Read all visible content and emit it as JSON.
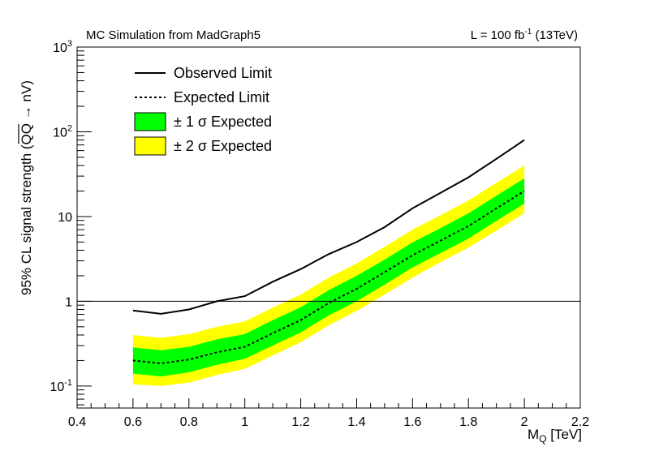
{
  "chart_data": {
    "type": "line",
    "title": "MC Simulation from MadGraph5",
    "lumi_label": {
      "prefix": "L = 100 fb",
      "exponent": "-1",
      "suffix": " (13TeV)"
    },
    "xlabel": {
      "main": "M",
      "sub": "Q",
      "rest": " [TeV]"
    },
    "ylabel": "95%  CL  signal strength (QQ̅ → nV)",
    "ylabel_parts": {
      "pre": "95%  CL  signal strength (",
      "qq": "QQ",
      "arrow": " → nV)"
    },
    "x_scale": "linear",
    "y_scale": "log",
    "xlim": [
      0.4,
      2.2
    ],
    "ylim": [
      0.055,
      1000
    ],
    "x_ticks": [
      0.4,
      0.6,
      0.8,
      1.0,
      1.2,
      1.4,
      1.6,
      1.8,
      2.0,
      2.2
    ],
    "x_tick_labels": [
      "0.4",
      "0.6",
      "0.8",
      "1",
      "1.2",
      "1.4",
      "1.6",
      "1.8",
      "2",
      "2.2"
    ],
    "y_ticks": [
      {
        "value": 0.1,
        "base": "10",
        "exp": "-1"
      },
      {
        "value": 1,
        "base": "1",
        "exp": ""
      },
      {
        "value": 10,
        "base": "10",
        "exp": ""
      },
      {
        "value": 100,
        "base": "10",
        "exp": "2"
      },
      {
        "value": 1000,
        "base": "10",
        "exp": "3"
      }
    ],
    "grid": false,
    "legend_position": "top-left",
    "reference_line": {
      "y": 1
    },
    "x": [
      0.6,
      0.7,
      0.8,
      0.9,
      1.0,
      1.1,
      1.2,
      1.3,
      1.4,
      1.5,
      1.6,
      1.7,
      1.8,
      1.9,
      2.0
    ],
    "series": [
      {
        "name": "Observed Limit",
        "style": "solid",
        "color": "#000000",
        "values": [
          0.78,
          0.71,
          0.8,
          1.0,
          1.15,
          1.7,
          2.4,
          3.6,
          5.0,
          7.5,
          12.5,
          19.0,
          29.0,
          48.0,
          80.0
        ]
      },
      {
        "name": "Expected Limit",
        "style": "dotted",
        "color": "#000000",
        "values": [
          0.2,
          0.185,
          0.205,
          0.25,
          0.29,
          0.42,
          0.6,
          0.95,
          1.4,
          2.2,
          3.5,
          5.2,
          7.7,
          12.5,
          20.0
        ]
      }
    ],
    "bands": [
      {
        "name": "± 2 σ Expected",
        "color": "#ffff00",
        "low": [
          0.105,
          0.1,
          0.11,
          0.135,
          0.16,
          0.23,
          0.33,
          0.52,
          0.77,
          1.2,
          1.9,
          2.9,
          4.3,
          6.8,
          11.0
        ],
        "high": [
          0.4,
          0.37,
          0.41,
          0.5,
          0.58,
          0.84,
          1.2,
          1.9,
          2.8,
          4.4,
          7.0,
          10.4,
          15.5,
          25.0,
          40.0
        ]
      },
      {
        "name": "± 1 σ Expected",
        "color": "#00ff00",
        "low": [
          0.14,
          0.13,
          0.145,
          0.178,
          0.21,
          0.3,
          0.43,
          0.68,
          1.0,
          1.57,
          2.5,
          3.7,
          5.5,
          8.9,
          14.2
        ],
        "high": [
          0.285,
          0.265,
          0.29,
          0.355,
          0.41,
          0.6,
          0.85,
          1.35,
          2.0,
          3.1,
          4.95,
          7.3,
          10.9,
          17.6,
          28.2
        ]
      }
    ],
    "legend": [
      {
        "label": "Observed Limit",
        "kind": "solid"
      },
      {
        "label": "Expected Limit",
        "kind": "dotted"
      },
      {
        "label": "± 1 σ Expected",
        "kind": "box",
        "color": "#00ff00"
      },
      {
        "label": "± 2 σ Expected",
        "kind": "box",
        "color": "#ffff00"
      }
    ]
  }
}
